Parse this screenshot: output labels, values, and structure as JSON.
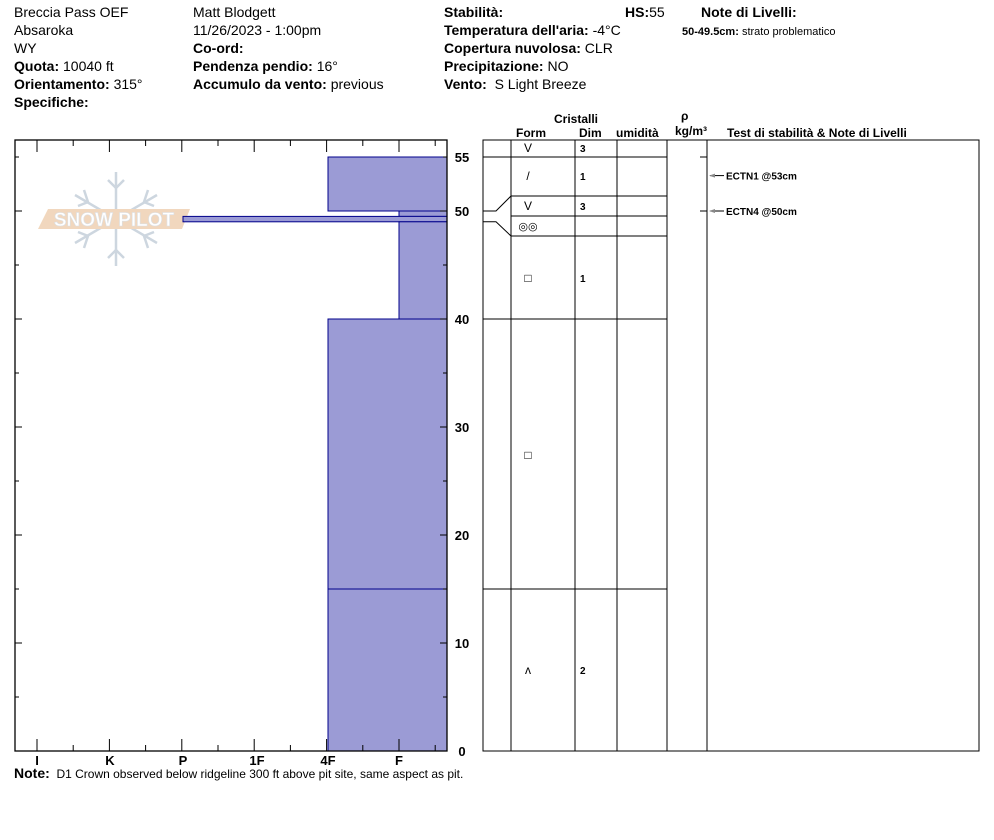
{
  "header": {
    "col1": {
      "location": "Breccia Pass OEF",
      "range": "Absaroka",
      "state": "WY",
      "elevation_label": "Quota:",
      "elevation": "10040 ft",
      "aspect_label": "Orientamento:",
      "aspect": "315°",
      "specifics_label": "Specifiche:"
    },
    "col2": {
      "observer": "Matt Blodgett",
      "datetime": "11/26/2023 - 1:00pm",
      "coord_label": "Co-ord:",
      "slope_label": "Pendenza pendio:",
      "slope": "16°",
      "wind_loading_label": "Accumulo da vento:",
      "wind_loading": "previous"
    },
    "col3": {
      "stability_label": "Stabilità:",
      "hs_label": "HS:",
      "hs": "55",
      "air_temp_label": "Temperatura dell'aria:",
      "air_temp": "-4°C",
      "sky_label": "Copertura nuvolosa:",
      "sky": "CLR",
      "precip_label": "Precipitazione:",
      "precip": "NO",
      "wind_label": "Vento:",
      "wind": "S Light Breeze"
    },
    "layer_notes": {
      "title": "Note di Livelli:",
      "range": "50-49.5cm:",
      "text": "strato problematico"
    }
  },
  "table_headers": {
    "crystals": "Cristalli",
    "form": "Form",
    "size": "Dim",
    "moisture": "umidità",
    "density_symbol": "ρ",
    "density_unit": "kg/m³",
    "tests": "Test di stabilità & Note di Livelli"
  },
  "note": {
    "label": "Note:",
    "text": "D1 Crown observed below ridgeline 300 ft above pit site, same aspect as pit."
  },
  "logo_text": "SNOW PILOT",
  "colors": {
    "layer_fill": "#9b9bd5",
    "layer_stroke": "#00008b",
    "logo_orange": "#f0d3b8",
    "logo_flake": "#c8d2dc"
  },
  "chart_data": {
    "type": "snow-profile",
    "y_ticks": [
      0,
      10,
      20,
      30,
      40,
      50,
      55
    ],
    "ylim": [
      0,
      55
    ],
    "hardness_ticks": [
      "I",
      "K",
      "P",
      "1F",
      "4F",
      "F"
    ],
    "layers": [
      {
        "top": 55,
        "bottom": 50,
        "hardness": "4F",
        "form": "V",
        "size": "3"
      },
      {
        "top": 50,
        "bottom": 49.5,
        "hardness": "F",
        "form": "/",
        "size": "1"
      },
      {
        "top": 49.5,
        "bottom": 49,
        "hardness": "P",
        "form": "V",
        "size": "3"
      },
      {
        "top": 49,
        "bottom": 40,
        "hardness": "F",
        "form": "◎◎",
        "size": ""
      },
      {
        "top": 40,
        "bottom": 15,
        "hardness": "4F",
        "form": "□",
        "size": "1"
      },
      {
        "top": 15,
        "bottom": 0,
        "hardness": "4F",
        "form": "□",
        "size": ""
      },
      {
        "top": 15,
        "bottom": 0,
        "hardness": "4F",
        "form": "ʌ",
        "size": "2"
      }
    ],
    "tests": [
      {
        "depth": 53,
        "label": "ECTN1 @53cm"
      },
      {
        "depth": 50,
        "label": "ECTN4 @50cm"
      }
    ]
  }
}
